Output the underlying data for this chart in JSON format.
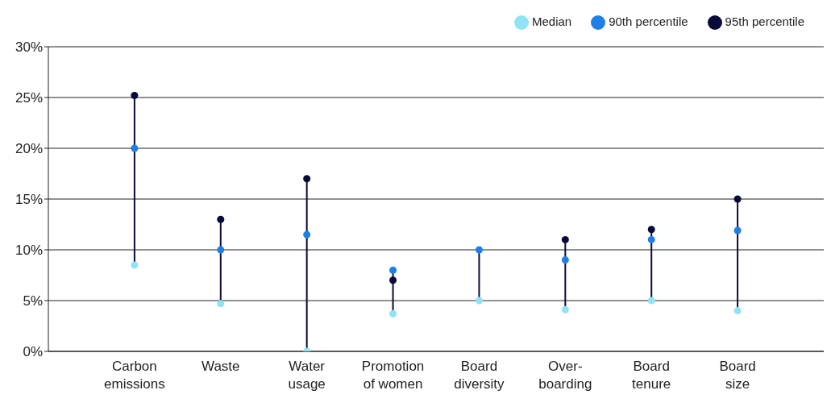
{
  "chart_data": {
    "type": "scatter",
    "categories": [
      "Carbon emissions",
      "Waste",
      "Water usage",
      "Promotion of women",
      "Board diversity",
      "Over-boarding",
      "Board tenure",
      "Board size"
    ],
    "series": [
      {
        "name": "Median",
        "color": "#8fe3f5",
        "values": [
          8.5,
          4.7,
          0,
          3.7,
          5,
          4.1,
          5,
          4
        ]
      },
      {
        "name": "90th percentile",
        "color": "#1f7fe8",
        "values": [
          20,
          10,
          11.5,
          8,
          10,
          9,
          11,
          11.9
        ]
      },
      {
        "name": "95th percentile",
        "color": "#0a0a3a",
        "values": [
          25.2,
          13,
          17,
          7,
          null,
          11,
          12,
          15
        ]
      }
    ],
    "ylim": [
      0,
      30
    ],
    "yticks": [
      {
        "value": 0,
        "label": "0%"
      },
      {
        "value": 5,
        "label": "5%"
      },
      {
        "value": 10,
        "label": "10%"
      },
      {
        "value": 15,
        "label": "15%"
      },
      {
        "value": 20,
        "label": "20%"
      },
      {
        "value": 25,
        "label": "25%"
      },
      {
        "value": 30,
        "label": "30%"
      }
    ],
    "grid": "y",
    "legend": "top right",
    "marker": "circle"
  }
}
